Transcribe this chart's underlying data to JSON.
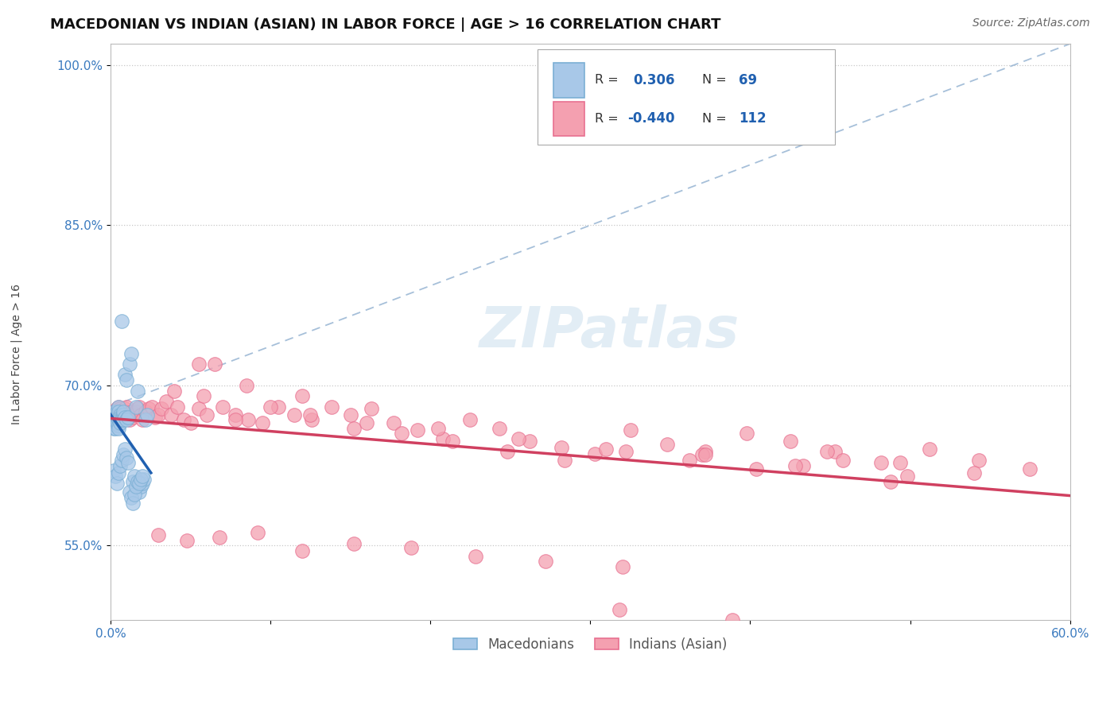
{
  "title": "MACEDONIAN VS INDIAN (ASIAN) IN LABOR FORCE | AGE > 16 CORRELATION CHART",
  "source": "Source: ZipAtlas.com",
  "ylabel": "In Labor Force | Age > 16",
  "xlim": [
    0.0,
    0.6
  ],
  "ylim": [
    0.48,
    1.02
  ],
  "ytick_positions": [
    0.55,
    0.7,
    0.85,
    1.0
  ],
  "ytick_labels": [
    "55.0%",
    "70.0%",
    "85.0%",
    "100.0%"
  ],
  "grid_color": "#c8c8c8",
  "background_color": "#ffffff",
  "mac_color": "#7bafd4",
  "mac_color_fill": "#a8c8e8",
  "indian_color": "#f4a0b0",
  "indian_color_dark": "#e87090",
  "trend_mac_color": "#2060b0",
  "trend_indian_color": "#d04060",
  "diagonal_color": "#90b0d0",
  "title_fontsize": 13,
  "axis_label_fontsize": 10,
  "tick_fontsize": 11,
  "legend_fontsize": 12,
  "watermark": "ZIPatlas",
  "mac_x": [
    0.001,
    0.001,
    0.002,
    0.002,
    0.002,
    0.002,
    0.003,
    0.003,
    0.003,
    0.003,
    0.003,
    0.004,
    0.004,
    0.004,
    0.004,
    0.004,
    0.005,
    0.005,
    0.005,
    0.005,
    0.005,
    0.005,
    0.005,
    0.006,
    0.006,
    0.006,
    0.006,
    0.007,
    0.007,
    0.007,
    0.008,
    0.008,
    0.008,
    0.009,
    0.009,
    0.01,
    0.01,
    0.011,
    0.012,
    0.013,
    0.014,
    0.015,
    0.016,
    0.017,
    0.018,
    0.019,
    0.02,
    0.021,
    0.022,
    0.023,
    0.002,
    0.003,
    0.004,
    0.005,
    0.006,
    0.007,
    0.008,
    0.009,
    0.01,
    0.011,
    0.012,
    0.013,
    0.014,
    0.015,
    0.016,
    0.017,
    0.018,
    0.019,
    0.02
  ],
  "mac_y": [
    0.67,
    0.665,
    0.672,
    0.668,
    0.675,
    0.66,
    0.668,
    0.663,
    0.671,
    0.665,
    0.66,
    0.672,
    0.668,
    0.675,
    0.67,
    0.665,
    0.68,
    0.672,
    0.668,
    0.663,
    0.67,
    0.66,
    0.675,
    0.668,
    0.672,
    0.665,
    0.67,
    0.76,
    0.67,
    0.668,
    0.672,
    0.675,
    0.668,
    0.71,
    0.67,
    0.705,
    0.668,
    0.67,
    0.72,
    0.73,
    0.61,
    0.615,
    0.68,
    0.695,
    0.6,
    0.605,
    0.608,
    0.612,
    0.668,
    0.672,
    0.62,
    0.615,
    0.608,
    0.618,
    0.625,
    0.63,
    0.635,
    0.64,
    0.632,
    0.628,
    0.6,
    0.595,
    0.59,
    0.598,
    0.605,
    0.61,
    0.608,
    0.612,
    0.615
  ],
  "indian_x": [
    0.003,
    0.004,
    0.005,
    0.005,
    0.006,
    0.006,
    0.007,
    0.007,
    0.008,
    0.008,
    0.009,
    0.009,
    0.01,
    0.01,
    0.011,
    0.012,
    0.013,
    0.014,
    0.015,
    0.016,
    0.017,
    0.018,
    0.019,
    0.02,
    0.022,
    0.024,
    0.026,
    0.028,
    0.03,
    0.032,
    0.035,
    0.038,
    0.042,
    0.046,
    0.05,
    0.055,
    0.06,
    0.065,
    0.07,
    0.078,
    0.086,
    0.095,
    0.105,
    0.115,
    0.126,
    0.138,
    0.15,
    0.163,
    0.177,
    0.192,
    0.208,
    0.225,
    0.243,
    0.262,
    0.282,
    0.303,
    0.325,
    0.348,
    0.372,
    0.398,
    0.425,
    0.453,
    0.482,
    0.512,
    0.543,
    0.575,
    0.04,
    0.058,
    0.078,
    0.1,
    0.125,
    0.152,
    0.182,
    0.214,
    0.248,
    0.284,
    0.322,
    0.362,
    0.404,
    0.448,
    0.494,
    0.54,
    0.055,
    0.085,
    0.12,
    0.16,
    0.205,
    0.255,
    0.31,
    0.37,
    0.433,
    0.498,
    0.03,
    0.048,
    0.068,
    0.092,
    0.12,
    0.152,
    0.188,
    0.228,
    0.272,
    0.32,
    0.372,
    0.428,
    0.488,
    0.318,
    0.389,
    0.458
  ],
  "indian_y": [
    0.672,
    0.678,
    0.68,
    0.675,
    0.672,
    0.678,
    0.668,
    0.675,
    0.67,
    0.672,
    0.678,
    0.675,
    0.673,
    0.68,
    0.672,
    0.668,
    0.675,
    0.67,
    0.672,
    0.675,
    0.678,
    0.68,
    0.672,
    0.668,
    0.675,
    0.678,
    0.68,
    0.67,
    0.672,
    0.678,
    0.685,
    0.672,
    0.68,
    0.668,
    0.665,
    0.678,
    0.672,
    0.72,
    0.68,
    0.672,
    0.668,
    0.665,
    0.68,
    0.672,
    0.668,
    0.68,
    0.672,
    0.678,
    0.665,
    0.658,
    0.65,
    0.668,
    0.66,
    0.648,
    0.642,
    0.636,
    0.658,
    0.645,
    0.638,
    0.655,
    0.648,
    0.638,
    0.628,
    0.64,
    0.63,
    0.622,
    0.695,
    0.69,
    0.668,
    0.68,
    0.672,
    0.66,
    0.655,
    0.648,
    0.638,
    0.63,
    0.638,
    0.63,
    0.622,
    0.638,
    0.628,
    0.618,
    0.72,
    0.7,
    0.69,
    0.665,
    0.66,
    0.65,
    0.64,
    0.635,
    0.625,
    0.615,
    0.56,
    0.555,
    0.558,
    0.562,
    0.545,
    0.552,
    0.548,
    0.54,
    0.535,
    0.53,
    0.635,
    0.625,
    0.61,
    0.49,
    0.48,
    0.63
  ]
}
